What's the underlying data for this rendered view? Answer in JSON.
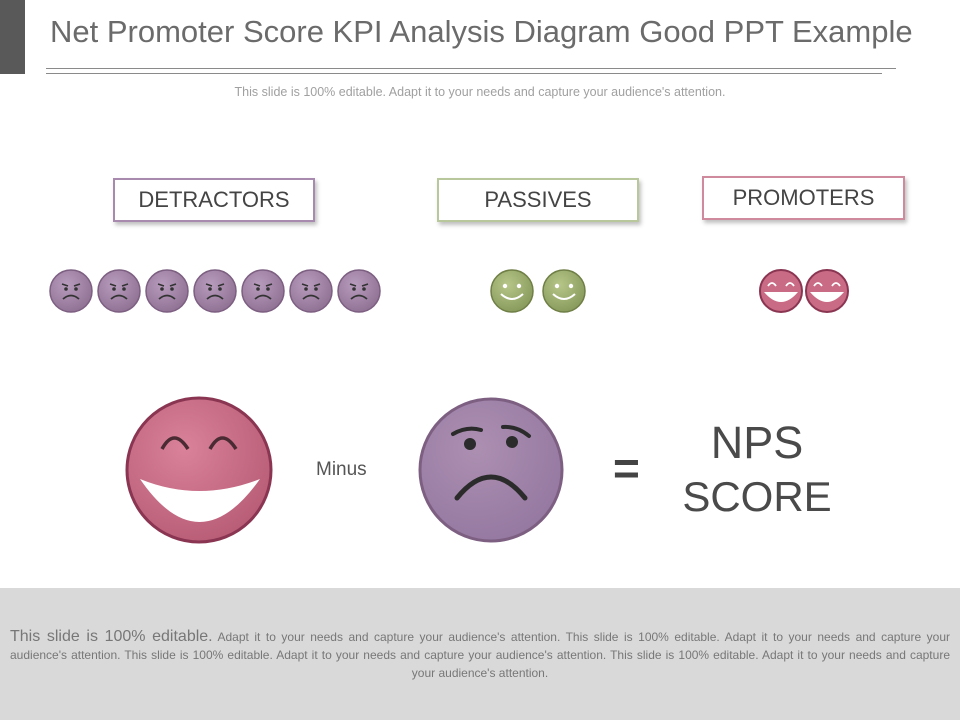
{
  "title": "Net Promoter Score KPI Analysis Diagram Good PPT Example",
  "subtitle": "This slide is 100% editable. Adapt it to your needs and capture your audience's attention.",
  "categories": [
    {
      "label": "DETRACTORS",
      "count": 7,
      "color": "#a284a7",
      "face": "sad"
    },
    {
      "label": "PASSIVES",
      "count": 2,
      "color": "#9aad6a",
      "face": "smile"
    },
    {
      "label": "PROMOTERS",
      "count": 2,
      "color": "#c96b85",
      "face": "grin"
    }
  ],
  "equation": {
    "operator_label": "Minus",
    "equals": "=",
    "result_line1": "NPS",
    "result_line2": "SCORE"
  },
  "footer": {
    "lead": "This slide is 100% editable.",
    "body": " Adapt it to your needs and capture your audience's attention. This slide is 100% editable. Adapt it to your needs and capture your audience's attention. This slide is 100% editable. Adapt it to your needs and capture your audience's attention. This slide is 100% editable. Adapt it to your needs and capture your audience's attention."
  },
  "colors": {
    "promoter": "#c96b85",
    "promoter_stroke": "#8a3552",
    "detractor": "#a284a7",
    "detractor_stroke": "#7d5f82",
    "passive": "#9aad6a",
    "passive_stroke": "#6f7f46"
  }
}
